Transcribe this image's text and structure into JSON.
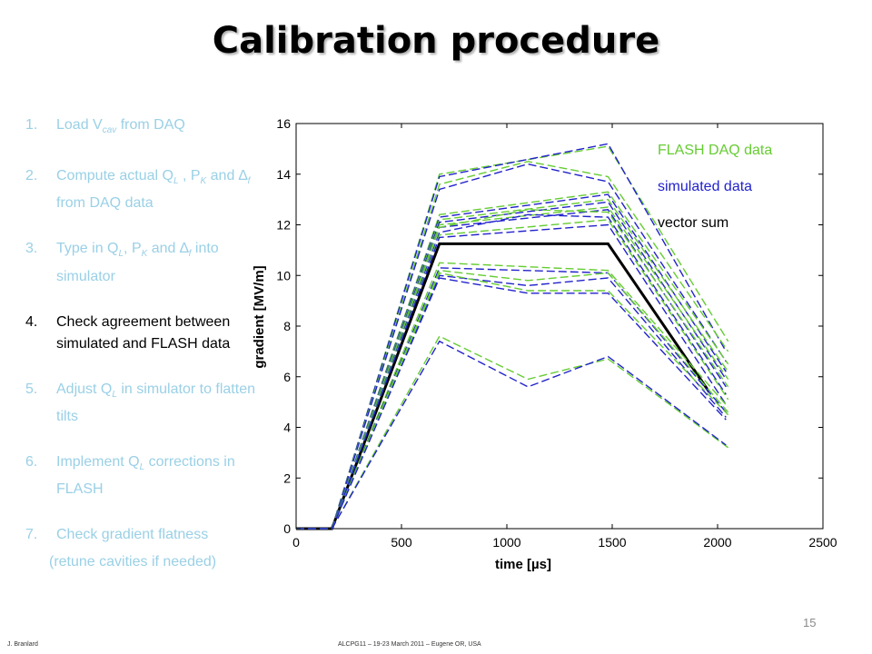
{
  "title": "Calibration procedure",
  "steps": [
    {
      "num": "1.",
      "parts": [
        "Load V",
        "cav",
        " from DAQ"
      ],
      "state": "dim"
    },
    {
      "num": "2.",
      "parts": [
        "Compute actual Q",
        "L",
        " , P",
        "K",
        " and ∆",
        "f",
        " from DAQ data"
      ],
      "state": "dim"
    },
    {
      "num": "3.",
      "parts": [
        "Type in Q",
        "L",
        ", P",
        "K",
        " and ∆",
        "f",
        " into simulator"
      ],
      "state": "dim"
    },
    {
      "num": "4.",
      "parts": [
        "Check agreement between simulated and FLASH data"
      ],
      "state": "active"
    },
    {
      "num": "5.",
      "parts": [
        "Adjust Q",
        "L",
        " in simulator to flatten tilts"
      ],
      "state": "dim"
    },
    {
      "num": "6.",
      "parts": [
        "Implement Q",
        "L",
        " corrections in FLASH"
      ],
      "state": "dim"
    },
    {
      "num": "7.",
      "parts": [
        "Check gradient flatness"
      ],
      "extra": "(retune cavities if needed)",
      "state": "dim"
    }
  ],
  "footer": {
    "author": "J. Branlard",
    "conference": "ALCPG11 – 19-23 March 2011 – Eugene OR, USA",
    "page": "15"
  },
  "chart_data": {
    "type": "line",
    "xlabel": "time [µs]",
    "ylabel": "gradient [MV/m]",
    "xlim": [
      0,
      2500
    ],
    "ylim": [
      0,
      16
    ],
    "xticks": [
      0,
      500,
      1000,
      1500,
      2000,
      2500
    ],
    "yticks": [
      0,
      2,
      4,
      6,
      8,
      10,
      12,
      14,
      16
    ],
    "grid": false,
    "legend_position": "top-right",
    "legend": [
      {
        "label": "FLASH DAQ data",
        "color": "#66cc33"
      },
      {
        "label": "simulated data",
        "color": "#2222cc"
      },
      {
        "label": "vector sum",
        "color": "#000000"
      }
    ],
    "series": [
      {
        "name": "vector sum",
        "color": "#000000",
        "style": "solid",
        "x": [
          0,
          170,
          680,
          1480,
          1960
        ],
        "y": [
          0,
          0,
          11.25,
          11.25,
          5.4
        ]
      },
      {
        "name": "FLASH DAQ data",
        "color": "#66cc33",
        "style": "dashed",
        "x": [
          0,
          170,
          680,
          1480,
          2050
        ],
        "y": [
          0,
          0,
          14.0,
          15.1,
          7.4
        ]
      },
      {
        "name": "simulated data",
        "color": "#2222cc",
        "style": "dashed",
        "x": [
          0,
          170,
          680,
          1480,
          2040
        ],
        "y": [
          0,
          0,
          13.9,
          15.2,
          7.0
        ]
      },
      {
        "name": "FLASH DAQ data",
        "color": "#66cc33",
        "style": "dashed",
        "x": [
          0,
          170,
          680,
          1100,
          1480,
          2050
        ],
        "y": [
          0,
          0,
          13.6,
          14.5,
          13.9,
          7.0
        ]
      },
      {
        "name": "simulated data",
        "color": "#2222cc",
        "style": "dashed",
        "x": [
          0,
          170,
          680,
          1100,
          1480,
          2040
        ],
        "y": [
          0,
          0,
          13.4,
          14.4,
          13.7,
          6.6
        ]
      },
      {
        "name": "FLASH DAQ data",
        "color": "#66cc33",
        "style": "dashed",
        "x": [
          0,
          170,
          680,
          1480,
          2050
        ],
        "y": [
          0,
          0,
          12.4,
          13.3,
          6.5
        ]
      },
      {
        "name": "simulated data",
        "color": "#2222cc",
        "style": "dashed",
        "x": [
          0,
          170,
          680,
          1480,
          2040
        ],
        "y": [
          0,
          0,
          12.3,
          13.2,
          6.2
        ]
      },
      {
        "name": "FLASH DAQ data",
        "color": "#66cc33",
        "style": "dashed",
        "x": [
          0,
          170,
          680,
          1480,
          2050
        ],
        "y": [
          0,
          0,
          12.2,
          13.0,
          6.2
        ]
      },
      {
        "name": "simulated data",
        "color": "#2222cc",
        "style": "dashed",
        "x": [
          0,
          170,
          680,
          1480,
          2040
        ],
        "y": [
          0,
          0,
          12.1,
          12.9,
          5.9
        ]
      },
      {
        "name": "FLASH DAQ data",
        "color": "#66cc33",
        "style": "dashed",
        "x": [
          0,
          170,
          680,
          1480,
          2050
        ],
        "y": [
          0,
          0,
          12.0,
          12.7,
          5.9
        ]
      },
      {
        "name": "simulated data",
        "color": "#2222cc",
        "style": "dashed",
        "x": [
          0,
          170,
          680,
          1480,
          2040
        ],
        "y": [
          0,
          0,
          11.9,
          12.6,
          5.6
        ]
      },
      {
        "name": "FLASH DAQ data",
        "color": "#66cc33",
        "style": "dashed",
        "x": [
          0,
          170,
          680,
          1100,
          1480,
          2050
        ],
        "y": [
          0,
          0,
          11.9,
          12.6,
          12.5,
          5.6
        ]
      },
      {
        "name": "simulated data",
        "color": "#2222cc",
        "style": "dashed",
        "x": [
          0,
          170,
          680,
          1100,
          1480,
          2040
        ],
        "y": [
          0,
          0,
          11.7,
          12.4,
          12.3,
          5.3
        ]
      },
      {
        "name": "FLASH DAQ data",
        "color": "#66cc33",
        "style": "dashed",
        "x": [
          0,
          170,
          680,
          1480,
          2050
        ],
        "y": [
          0,
          0,
          11.6,
          12.2,
          5.1
        ]
      },
      {
        "name": "simulated data",
        "color": "#2222cc",
        "style": "dashed",
        "x": [
          0,
          170,
          680,
          1480,
          2040
        ],
        "y": [
          0,
          0,
          11.5,
          12.0,
          4.9
        ]
      },
      {
        "name": "FLASH DAQ data",
        "color": "#66cc33",
        "style": "dashed",
        "x": [
          0,
          170,
          680,
          1480,
          2050
        ],
        "y": [
          0,
          0,
          10.5,
          10.2,
          4.8
        ]
      },
      {
        "name": "simulated data",
        "color": "#2222cc",
        "style": "dashed",
        "x": [
          0,
          170,
          680,
          1480,
          2040
        ],
        "y": [
          0,
          0,
          10.3,
          10.1,
          4.6
        ]
      },
      {
        "name": "FLASH DAQ data",
        "color": "#66cc33",
        "style": "dashed",
        "x": [
          0,
          170,
          680,
          1100,
          1480,
          2050
        ],
        "y": [
          0,
          0,
          10.2,
          9.8,
          10.1,
          4.6
        ]
      },
      {
        "name": "simulated data",
        "color": "#2222cc",
        "style": "dashed",
        "x": [
          0,
          170,
          680,
          1100,
          1480,
          2040
        ],
        "y": [
          0,
          0,
          10.0,
          9.6,
          9.9,
          4.4
        ]
      },
      {
        "name": "FLASH DAQ data",
        "color": "#66cc33",
        "style": "dashed",
        "x": [
          0,
          170,
          680,
          1100,
          1480,
          2050
        ],
        "y": [
          0,
          0,
          10.1,
          9.4,
          9.4,
          4.5
        ]
      },
      {
        "name": "simulated data",
        "color": "#2222cc",
        "style": "dashed",
        "x": [
          0,
          170,
          680,
          1100,
          1480,
          2040
        ],
        "y": [
          0,
          0,
          9.9,
          9.3,
          9.3,
          4.3
        ]
      },
      {
        "name": "FLASH DAQ data",
        "color": "#66cc33",
        "style": "dashed",
        "x": [
          0,
          170,
          680,
          1100,
          1480,
          2050
        ],
        "y": [
          0,
          0,
          7.6,
          5.9,
          6.7,
          3.2
        ]
      },
      {
        "name": "simulated data",
        "color": "#2222cc",
        "style": "dashed",
        "x": [
          0,
          170,
          680,
          1100,
          1480,
          2040
        ],
        "y": [
          0,
          0,
          7.4,
          5.6,
          6.8,
          3.3
        ]
      }
    ]
  }
}
